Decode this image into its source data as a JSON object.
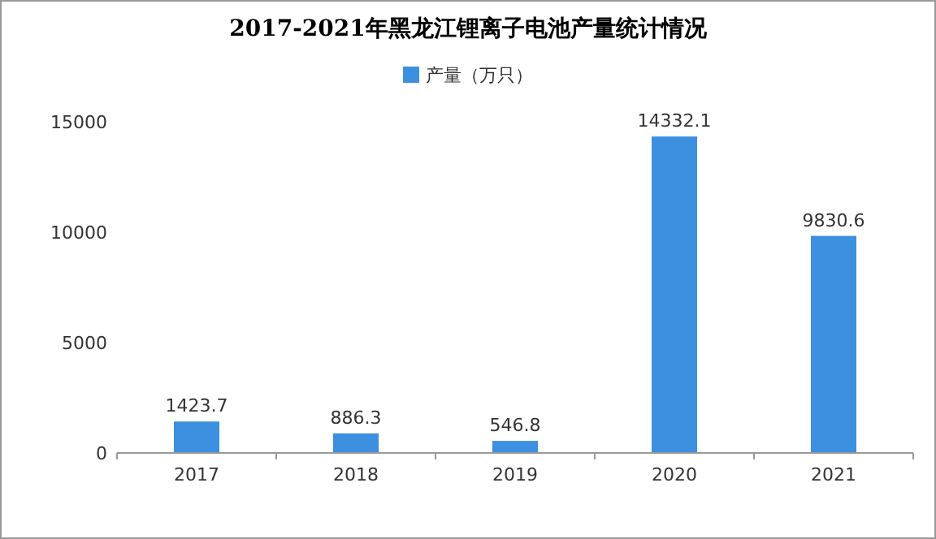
{
  "chart_data": {
    "type": "bar",
    "title": "2017-2021年黑龙江锂离子电池产量统计情况",
    "categories": [
      "2017",
      "2018",
      "2019",
      "2020",
      "2021"
    ],
    "series": [
      {
        "name": "产量（万只）",
        "color": "#3d8fe0",
        "values": [
          1423.7,
          886.3,
          546.8,
          14332.1,
          9830.6
        ]
      }
    ],
    "ylim": [
      0,
      15000
    ],
    "yticks": [
      0,
      5000,
      10000,
      15000
    ],
    "legend": "top",
    "data_labels": true
  }
}
